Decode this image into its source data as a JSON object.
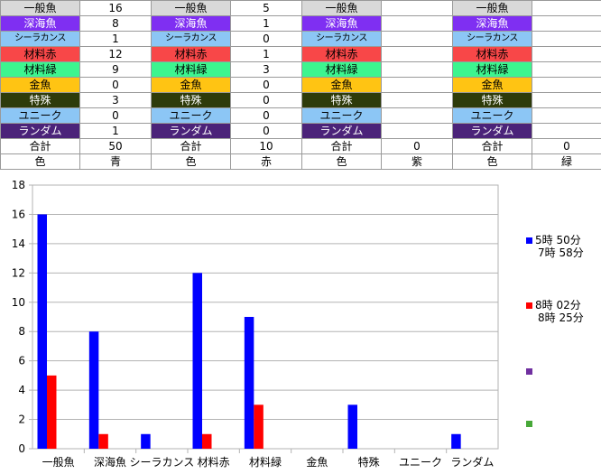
{
  "sheet": {
    "rows": [
      {
        "label": "一般魚",
        "bg": "#d9d9d9",
        "fg": "#000000",
        "vals": [
          "16",
          "5",
          "",
          ""
        ]
      },
      {
        "label": "深海魚",
        "bg": "#7f2ff2",
        "fg": "#ffffff",
        "vals": [
          "8",
          "1",
          "",
          ""
        ]
      },
      {
        "label": "シーラカンス",
        "bg": "#8cc6f5",
        "fg": "#000000",
        "vals": [
          "1",
          "0",
          "",
          ""
        ]
      },
      {
        "label": "材料赤",
        "bg": "#f84748",
        "fg": "#000000",
        "vals": [
          "12",
          "1",
          "",
          ""
        ]
      },
      {
        "label": "材料緑",
        "bg": "#3df58f",
        "fg": "#000000",
        "vals": [
          "9",
          "3",
          "",
          ""
        ]
      },
      {
        "label": "金魚",
        "bg": "#ffc413",
        "fg": "#000000",
        "vals": [
          "0",
          "0",
          "",
          ""
        ]
      },
      {
        "label": "特殊",
        "bg": "#2e3b0a",
        "fg": "#ffffff",
        "vals": [
          "3",
          "0",
          "",
          ""
        ]
      },
      {
        "label": "ユニーク",
        "bg": "#8cc6f5",
        "fg": "#000000",
        "vals": [
          "0",
          "0",
          "",
          ""
        ]
      },
      {
        "label": "ランダム",
        "bg": "#4b2379",
        "fg": "#ffffff",
        "vals": [
          "1",
          "0",
          "",
          ""
        ]
      }
    ],
    "total_label": "合計",
    "totals": [
      "50",
      "10",
      "0",
      "0"
    ],
    "color_label": "色",
    "colors": [
      "青",
      "赤",
      "紫",
      "緑"
    ]
  },
  "chart_data": {
    "type": "bar",
    "categories": [
      "一般魚",
      "深海魚",
      "シーラカンス",
      "材料赤",
      "材料緑",
      "金魚",
      "特殊",
      "ユニーク",
      "ランダム"
    ],
    "series": [
      {
        "name": "5時 50分\n7時 58分",
        "color": "#0000ff",
        "values": [
          16,
          8,
          1,
          12,
          9,
          0,
          3,
          0,
          1
        ]
      },
      {
        "name": "8時 02分\n8時 25分",
        "color": "#ff0000",
        "values": [
          5,
          1,
          0,
          1,
          3,
          0,
          0,
          0,
          0
        ]
      },
      {
        "name": "",
        "color": "#7030a0",
        "values": [
          0,
          0,
          0,
          0,
          0,
          0,
          0,
          0,
          0
        ]
      },
      {
        "name": "",
        "color": "#47a838",
        "values": [
          0,
          0,
          0,
          0,
          0,
          0,
          0,
          0,
          0
        ]
      }
    ],
    "yticks": [
      0,
      2,
      4,
      6,
      8,
      10,
      12,
      14,
      16,
      18
    ],
    "ylim": [
      0,
      18
    ],
    "grid": true,
    "legend": "right"
  }
}
